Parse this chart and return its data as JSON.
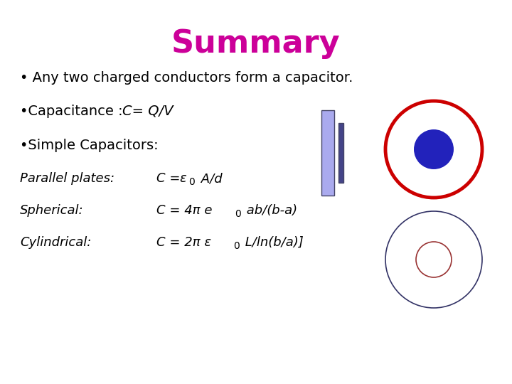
{
  "title": "Summary",
  "title_color": "#cc0099",
  "title_fontsize": 32,
  "background_color": "#ffffff",
  "text_color": "#000000",
  "font_size_body": 14,
  "font_size_label": 13,
  "bullet1": "• Any two charged conductors form a capacitor.",
  "bullet2_plain": "•Capacitance :  ",
  "bullet2_italic": "C= Q/V",
  "bullet3": "•Simple Capacitors:",
  "row1_label": "Parallel plates:",
  "row2_label": "Spherical:",
  "row3_label": "Cylindrical:",
  "plate_left_color": "#aaaaee",
  "plate_edge_color": "#444466",
  "plate_right_color": "#444488",
  "sph_outer_color": "#cc0000",
  "sph_inner_color": "#2222bb",
  "cyl_outer_color": "#333366",
  "cyl_inner_color": "#993333"
}
